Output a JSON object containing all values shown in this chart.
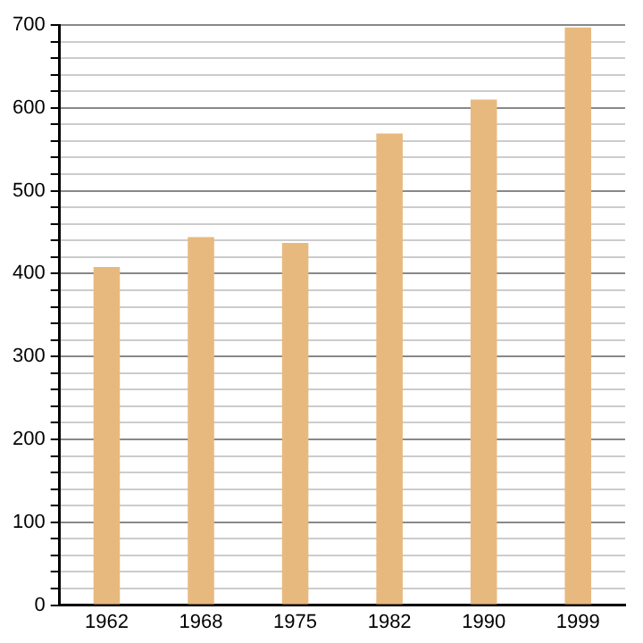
{
  "chart_data": {
    "type": "bar",
    "categories": [
      "1962",
      "1968",
      "1975",
      "1982",
      "1990",
      "1999"
    ],
    "values": [
      408,
      444,
      437,
      569,
      610,
      697
    ],
    "color": "#e8b97e",
    "ylim": [
      0,
      700
    ],
    "yticks": [
      0,
      {
        "value": 20,
        "label": null
      },
      {
        "value": 40,
        "label": null
      },
      {
        "value": 60,
        "label": null
      },
      {
        "value": 80,
        "label": null
      },
      100,
      {
        "value": 120,
        "label": null
      },
      {
        "value": 140,
        "label": null
      },
      {
        "value": 160,
        "label": null
      },
      {
        "value": 180,
        "label": null
      },
      200,
      {
        "value": 220,
        "label": null
      },
      {
        "value": 240,
        "label": null
      },
      {
        "value": 260,
        "label": null
      },
      {
        "value": 280,
        "label": null
      },
      300,
      {
        "value": 320,
        "label": null
      },
      {
        "value": 340,
        "label": null
      },
      {
        "value": 360,
        "label": null
      },
      {
        "value": 380,
        "label": null
      },
      400,
      {
        "value": 420,
        "label": null
      },
      {
        "value": 440,
        "label": null
      },
      {
        "value": 460,
        "label": null
      },
      {
        "value": 480,
        "label": null
      },
      500,
      {
        "value": 520,
        "label": null
      },
      {
        "value": 540,
        "label": null
      },
      {
        "value": 560,
        "label": null
      },
      {
        "value": 580,
        "label": null
      },
      600,
      {
        "value": 620,
        "label": null
      },
      {
        "value": 640,
        "label": null
      },
      {
        "value": 660,
        "label": null
      },
      {
        "value": 680,
        "label": null
      },
      700
    ],
    "grid": "y",
    "legend": false
  }
}
